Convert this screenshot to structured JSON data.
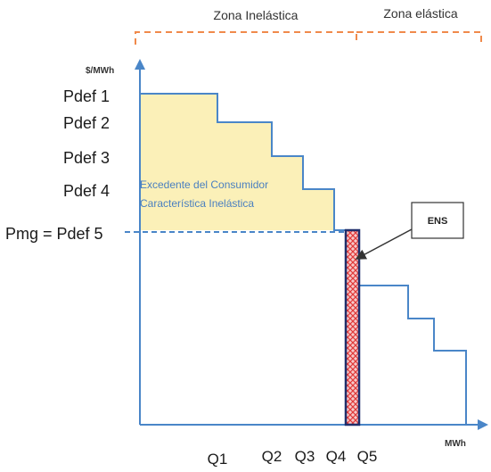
{
  "zones": {
    "inelastic": "Zona Inelástica",
    "elastic": "Zona elástica"
  },
  "axes": {
    "y_unit": "$/MWh",
    "x_unit": "MWh"
  },
  "price_levels": [
    {
      "label": "Pdef 1"
    },
    {
      "label": "Pdef 2"
    },
    {
      "label": "Pdef 3"
    },
    {
      "label": "Pdef 4"
    },
    {
      "label": "Pmg = Pdef 5"
    }
  ],
  "quantities": [
    "Q1",
    "Q2",
    "Q3",
    "Q4",
    "Q5"
  ],
  "area": {
    "line1": "Excedente del Consumidor",
    "line2": "Característica Inelástica"
  },
  "ens_box": "ENS",
  "colors": {
    "curve": "#4a86c8",
    "surplus_fill": "#fbf0b8",
    "zone_bracket": "#f08a4b",
    "ens_fill": "#e03a3a",
    "axis": "#4a86c8"
  }
}
